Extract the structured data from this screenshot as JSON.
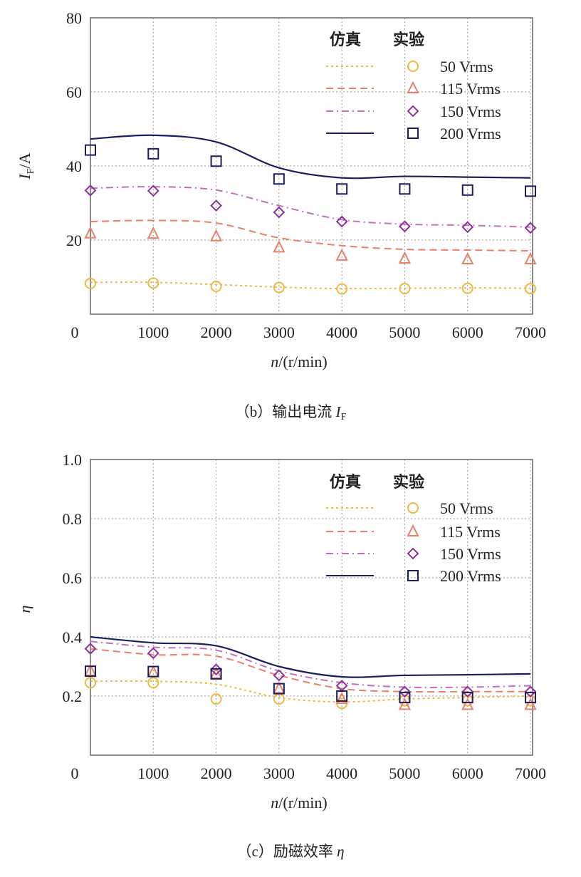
{
  "chart_data": [
    {
      "type": "line",
      "panel": "b",
      "caption": "（b）输出电流 ",
      "caption_symbol": "I",
      "caption_sub": "F",
      "xlabel_var": "n",
      "xlabel_unit": "/(r/min)",
      "ylabel_var": "I",
      "ylabel_sub": "F",
      "ylabel_unit": "/A",
      "x": [
        0,
        1000,
        2000,
        3000,
        4000,
        5000,
        6000,
        7000
      ],
      "xlim": [
        0,
        7000
      ],
      "ylim": [
        0,
        80
      ],
      "xticks": [
        "0",
        "1000",
        "2000",
        "3000",
        "4000",
        "5000",
        "6000",
        "7000"
      ],
      "yticks": [
        "20",
        "40",
        "60",
        "80"
      ],
      "grid": true,
      "legend_position": "top-right",
      "legend_headers": [
        "仿真",
        "实验"
      ],
      "series": [
        {
          "name": "50 Vrms",
          "color": "#f0b840",
          "marker": "circle",
          "dash": "dotted",
          "simulation": [
            8.6,
            8.6,
            8.0,
            7.3,
            6.9,
            7.0,
            7.1,
            7.0
          ],
          "experiment": [
            8.3,
            8.4,
            7.5,
            7.2,
            6.8,
            6.9,
            7.0,
            6.9
          ]
        },
        {
          "name": "115 Vrms",
          "color": "#e8806a",
          "marker": "triangle",
          "dash": "dashed",
          "simulation": [
            25.0,
            25.3,
            24.6,
            20.6,
            18.5,
            17.5,
            17.3,
            17.1
          ],
          "experiment": [
            21.8,
            21.7,
            21.0,
            18.0,
            15.8,
            15.0,
            14.8,
            14.8
          ]
        },
        {
          "name": "150 Vrms",
          "color": "#c070c0",
          "marker_color": "#9030a0",
          "marker": "diamond",
          "dash": "dash-dot",
          "simulation": [
            34.0,
            34.4,
            33.5,
            29.3,
            25.5,
            24.3,
            24.0,
            23.5
          ],
          "experiment": [
            33.4,
            33.3,
            29.3,
            27.5,
            25.0,
            23.7,
            23.5,
            23.3
          ]
        },
        {
          "name": "200 Vrms",
          "color": "#1c1f5e",
          "marker": "square",
          "dash": "solid",
          "simulation": [
            47.3,
            48.3,
            46.5,
            39.5,
            36.8,
            37.2,
            37.0,
            36.8
          ],
          "experiment": [
            44.3,
            43.3,
            41.3,
            36.5,
            33.8,
            33.8,
            33.5,
            33.2
          ]
        }
      ]
    },
    {
      "type": "line",
      "panel": "c",
      "caption": "（c）励磁效率 ",
      "caption_symbol": "η",
      "caption_sub": "",
      "xlabel_var": "n",
      "xlabel_unit": "/(r/min)",
      "ylabel_var": "η",
      "ylabel_sub": "",
      "ylabel_unit": "",
      "x": [
        0,
        1000,
        2000,
        3000,
        4000,
        5000,
        6000,
        7000
      ],
      "xlim": [
        0,
        7000
      ],
      "ylim": [
        0,
        1.0
      ],
      "xticks": [
        "0",
        "1000",
        "2000",
        "3000",
        "4000",
        "5000",
        "6000",
        "7000"
      ],
      "yticks": [
        "0.2",
        "0.4",
        "0.6",
        "0.8",
        "1.0"
      ],
      "grid": true,
      "legend_position": "top-right",
      "legend_headers": [
        "仿真",
        "实验"
      ],
      "series": [
        {
          "name": "50 Vrms",
          "color": "#f0b840",
          "marker": "circle",
          "dash": "dotted",
          "simulation": [
            0.25,
            0.25,
            0.24,
            0.195,
            0.18,
            0.19,
            0.195,
            0.2
          ],
          "experiment": [
            0.245,
            0.245,
            0.19,
            0.19,
            0.175,
            0.185,
            0.185,
            0.185
          ]
        },
        {
          "name": "115 Vrms",
          "color": "#e8806a",
          "marker": "triangle",
          "dash": "dashed",
          "simulation": [
            0.36,
            0.34,
            0.335,
            0.27,
            0.225,
            0.215,
            0.215,
            0.215
          ],
          "experiment": [
            0.285,
            0.28,
            0.275,
            0.225,
            0.19,
            0.17,
            0.17,
            0.17
          ]
        },
        {
          "name": "150 Vrms",
          "color": "#c070c0",
          "marker_color": "#9030a0",
          "marker": "diamond",
          "dash": "dash-dot",
          "simulation": [
            0.385,
            0.365,
            0.355,
            0.285,
            0.245,
            0.23,
            0.23,
            0.235
          ],
          "experiment": [
            0.36,
            0.345,
            0.29,
            0.27,
            0.235,
            0.215,
            0.215,
            0.215
          ]
        },
        {
          "name": "200 Vrms",
          "color": "#1c1f5e",
          "marker": "square",
          "dash": "solid",
          "simulation": [
            0.4,
            0.38,
            0.37,
            0.3,
            0.265,
            0.27,
            0.272,
            0.275
          ],
          "experiment": [
            0.284,
            0.283,
            0.275,
            0.225,
            0.2,
            0.195,
            0.195,
            0.195
          ]
        }
      ]
    }
  ]
}
